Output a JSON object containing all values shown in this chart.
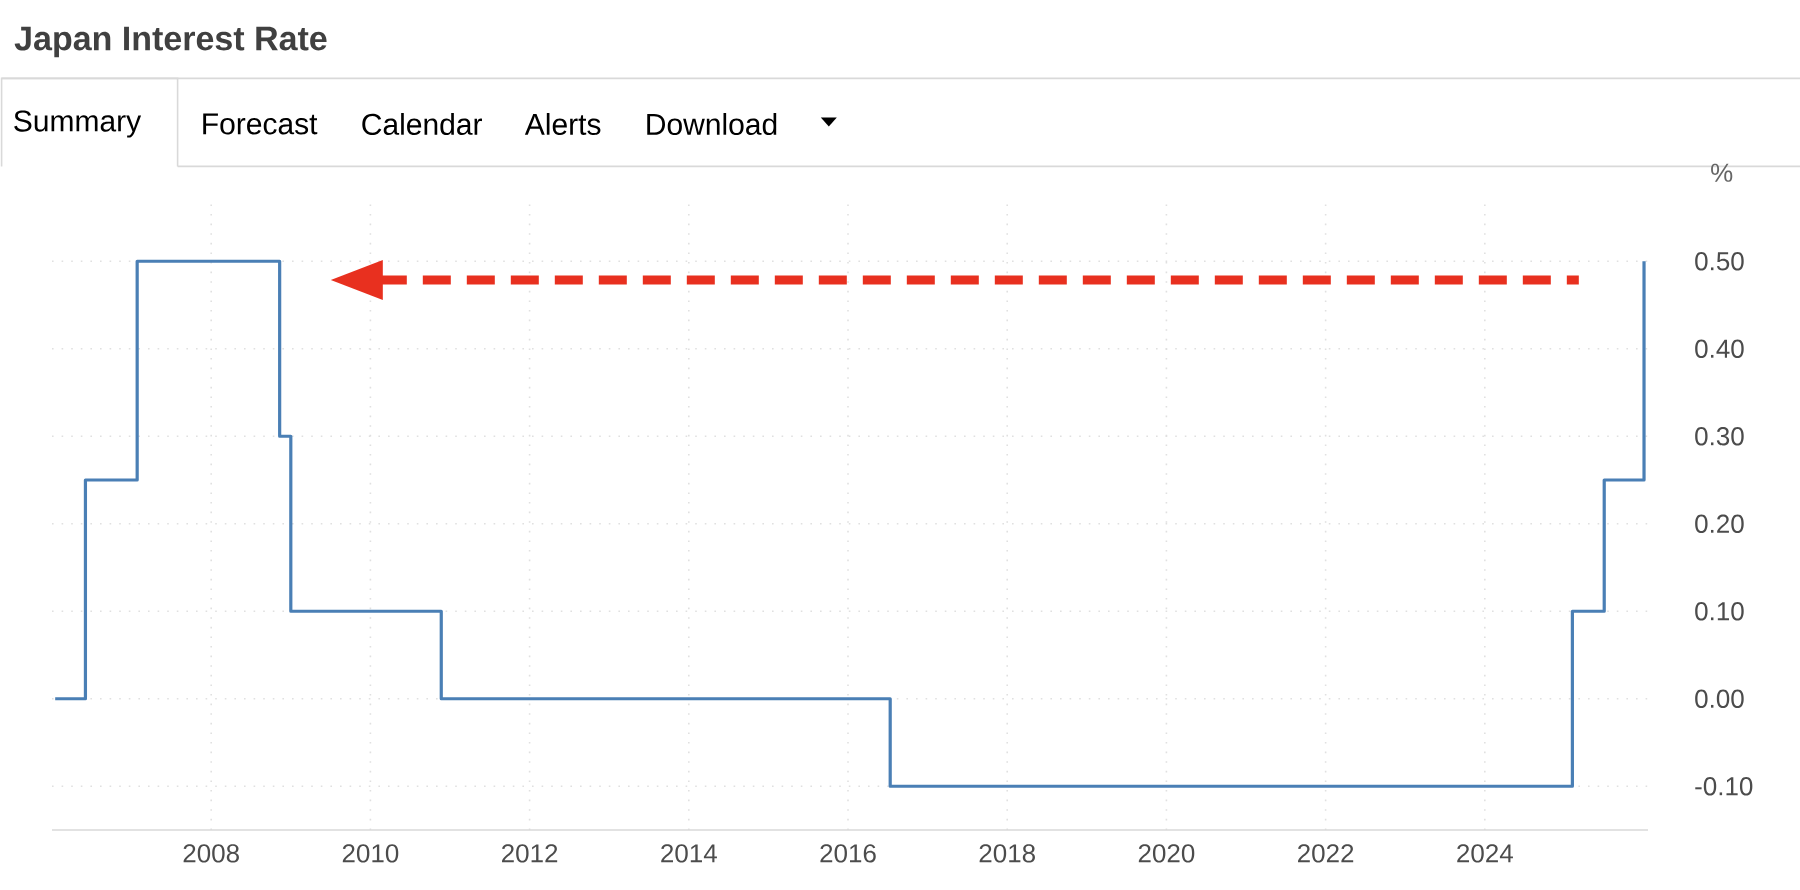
{
  "chart_data": {
    "type": "step",
    "title": "Japan Interest Rate",
    "ylabel": "%",
    "annotations": [
      "Summary",
      "Forecast",
      "Calendar",
      "Alerts",
      "Download"
    ],
    "x": [
      2006.04,
      2006.42,
      2007.07,
      2008.86,
      2009.0,
      2010.89,
      2016.53,
      2025.1,
      2025.5,
      2026.0
    ],
    "values": [
      0,
      0.25,
      0.5,
      0.3,
      0.1,
      0,
      -0.1,
      0.1,
      0.25,
      0.5
    ],
    "color": "#4a7fb5",
    "xlim": [
      2006.0,
      2026.05
    ],
    "ylim": [
      -0.15,
      0.57
    ],
    "xticks": [
      2008,
      2010,
      2012,
      2014,
      2016,
      2018,
      2020,
      2022,
      2024
    ],
    "yticks": [
      {
        "value": -0.1,
        "label": "-0.10"
      },
      {
        "value": 0,
        "label": "0.00"
      },
      {
        "value": 0.1,
        "label": "0.10"
      },
      {
        "value": 0.2,
        "label": "0.20"
      },
      {
        "value": 0.3,
        "label": "0.30"
      },
      {
        "value": 0.4,
        "label": "0.40"
      },
      {
        "value": 0.5,
        "label": "0.50"
      }
    ],
    "grid": true
  }
}
